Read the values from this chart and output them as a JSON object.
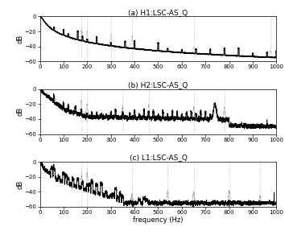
{
  "title_a": "(a) H1:LSC-AS_Q",
  "title_b": "(b) H2:LSC-AS_Q",
  "title_c": "(c) L1:LSC-AS_Q",
  "xlabel": "frequency (Hz)",
  "ylabel": "dB",
  "xlim": [
    0,
    1000
  ],
  "ylim": [
    -60,
    0
  ],
  "yticks": [
    0,
    -20,
    -40,
    -60
  ],
  "xticks": [
    0,
    100,
    200,
    300,
    400,
    500,
    600,
    700,
    800,
    900,
    1000
  ],
  "vlines_a": [
    175,
    200,
    300,
    390,
    650,
    975
  ],
  "vlines_b": [
    175,
    200,
    350,
    460,
    650,
    780
  ],
  "vlines_c": [
    175,
    200,
    390,
    540,
    650,
    800,
    930
  ]
}
